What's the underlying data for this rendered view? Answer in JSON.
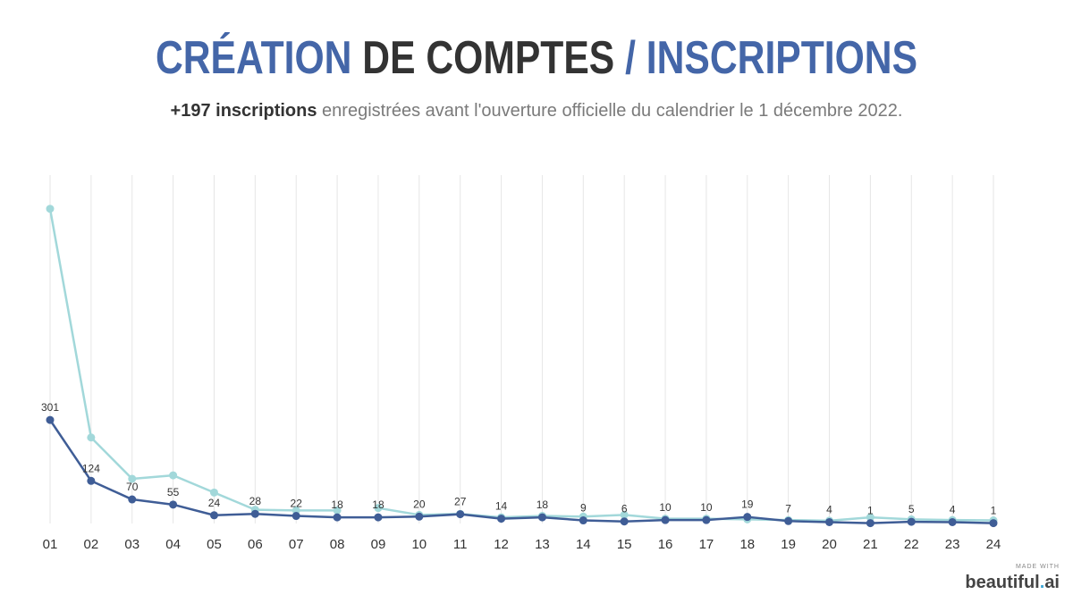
{
  "title": {
    "part1": "CRÉATION",
    "part2": " DE COMPTES ",
    "part3": "/ INSCRIPTIONS"
  },
  "subtitle": {
    "strong": "+197 inscriptions",
    "rest": " enregistrées avant l'ouverture officielle du calendrier le 1 décembre 2022."
  },
  "chart_data": {
    "type": "line",
    "categories": [
      "01",
      "02",
      "03",
      "04",
      "05",
      "06",
      "07",
      "08",
      "09",
      "10",
      "11",
      "12",
      "13",
      "14",
      "15",
      "16",
      "17",
      "18",
      "19",
      "20",
      "21",
      "22",
      "23",
      "24"
    ],
    "ylim": [
      0,
      1000
    ],
    "grid": true,
    "series": [
      {
        "color": "#3f5d96",
        "labeled": true,
        "values": [
          301,
          124,
          70,
          55,
          24,
          28,
          22,
          18,
          18,
          20,
          27,
          14,
          18,
          9,
          6,
          10,
          10,
          19,
          7,
          4,
          1,
          5,
          4,
          1
        ]
      },
      {
        "color": "#a2d8da",
        "labeled": false,
        "values": [
          915,
          250,
          130,
          140,
          90,
          40,
          38,
          38,
          45,
          25,
          28,
          18,
          22,
          20,
          25,
          14,
          14,
          12,
          10,
          8,
          18,
          12,
          10,
          9
        ],
        "gap_after_index": 7
      }
    ]
  },
  "brand": {
    "made_with": "MADE WITH",
    "name": "beautiful",
    "dot": ".",
    "suffix": "ai"
  }
}
